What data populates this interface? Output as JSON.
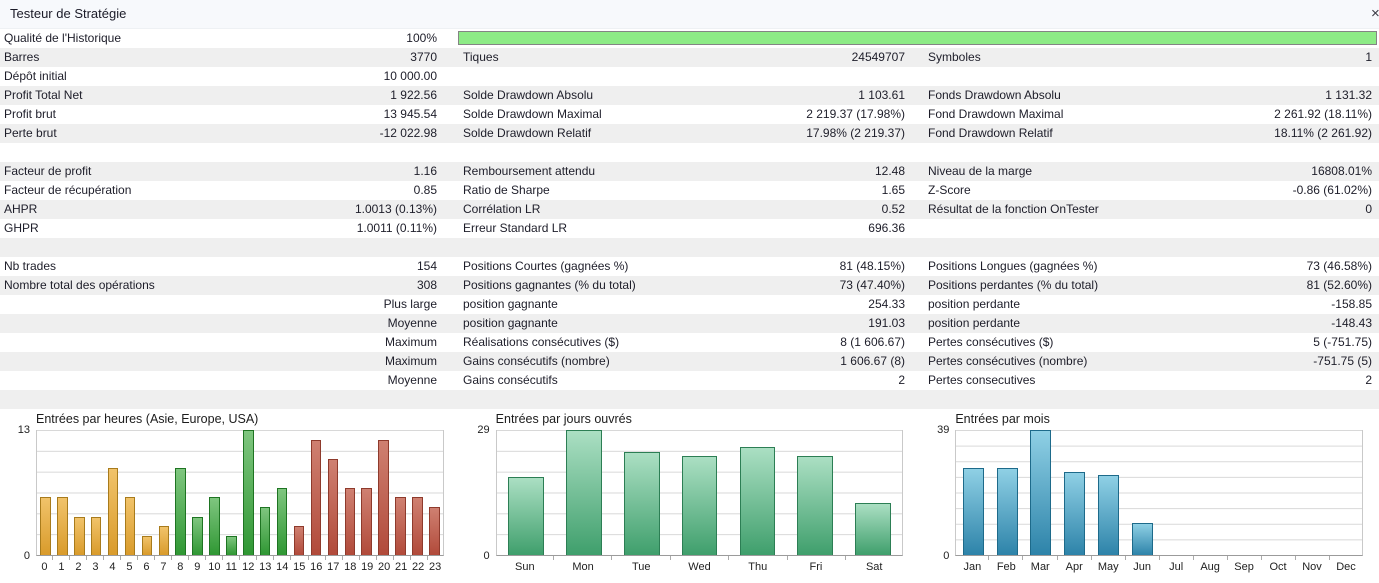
{
  "header": {
    "title": "Testeur de Stratégie",
    "close_glyph": "×"
  },
  "colors": {
    "titlebar_bg": "#f7f9fc",
    "row_alt_bg": "#efefef",
    "progress_fill": "#8deb86",
    "progress_border": "#848484",
    "palettes": {
      "asia": {
        "top": "#f1c36a",
        "bottom": "#d99b2b",
        "border": "#a87b1c"
      },
      "europe": {
        "top": "#7fc67f",
        "bottom": "#2f9733",
        "border": "#1e7422"
      },
      "usa": {
        "top": "#cf8071",
        "bottom": "#b14a3a",
        "border": "#8e3a2c"
      },
      "weekday": {
        "top": "#abdfc3",
        "bottom": "#3f9f6c",
        "border": "#2c7e54"
      },
      "month": {
        "top": "#8fd0e5",
        "bottom": "#2d83a9",
        "border": "#1d6a8a"
      }
    }
  },
  "table": {
    "rows": [
      {
        "c1l": "Qualité de l'Historique",
        "c1v": "100%",
        "progress": true
      },
      {
        "c1l": "Barres",
        "c1v": "3770",
        "c2l": "Tiques",
        "c2v": "24549707",
        "c3l": "Symboles",
        "c3v": "1"
      },
      {
        "c1l": "Dépôt initial",
        "c1v": "10 000.00"
      },
      {
        "c1l": "Profit Total Net",
        "c1v": "1 922.56",
        "c2l": "Solde Drawdown Absolu",
        "c2v": "1 103.61",
        "c3l": "Fonds Drawdown Absolu",
        "c3v": "1 131.32"
      },
      {
        "c1l": "Profit brut",
        "c1v": "13 945.54",
        "c2l": "Solde Drawdown Maximal",
        "c2v": "2 219.37 (17.98%)",
        "c3l": "Fond Drawdown Maximal",
        "c3v": "2 261.92 (18.11%)"
      },
      {
        "c1l": "Perte brut",
        "c1v": "-12 022.98",
        "c2l": "Solde Drawdown Relatif",
        "c2v": "17.98% (2 219.37)",
        "c3l": "Fond Drawdown Relatif",
        "c3v": "18.11% (2 261.92)"
      },
      {},
      {
        "c1l": "Facteur de profit",
        "c1v": "1.16",
        "c2l": "Remboursement attendu",
        "c2v": "12.48",
        "c3l": "Niveau de la marge",
        "c3v": "16808.01%"
      },
      {
        "c1l": "Facteur de récupération",
        "c1v": "0.85",
        "c2l": "Ratio de Sharpe",
        "c2v": "1.65",
        "c3l": "Z-Score",
        "c3v": "-0.86 (61.02%)"
      },
      {
        "c1l": "AHPR",
        "c1v": "1.0013 (0.13%)",
        "c2l": "Corrélation LR",
        "c2v": "0.52",
        "c3l": "Résultat de la fonction OnTester",
        "c3v": "0"
      },
      {
        "c1l": "GHPR",
        "c1v": "1.0011 (0.11%)",
        "c2l": "Erreur Standard LR",
        "c2v": "696.36"
      },
      {},
      {
        "c1l": "Nb trades",
        "c1v": "154",
        "c2l": "Positions Courtes (gagnées %)",
        "c2v": "81 (48.15%)",
        "c3l": "Positions Longues (gagnées %)",
        "c3v": "73 (46.58%)"
      },
      {
        "c1l": "Nombre total des opérations",
        "c1v": "308",
        "c2l": "Positions gagnantes (% du total)",
        "c2v": "73 (47.40%)",
        "c3l": "Positions perdantes (% du total)",
        "c3v": "81 (52.60%)"
      },
      {
        "c1v": "Plus large",
        "c2l": "position gagnante",
        "c2v": "254.33",
        "c3l": "position perdante",
        "c3v": "-158.85"
      },
      {
        "c1v": "Moyenne",
        "c2l": "position gagnante",
        "c2v": "191.03",
        "c3l": "position perdante",
        "c3v": "-148.43"
      },
      {
        "c1v": "Maximum",
        "c2l": "Réalisations consécutives ($)",
        "c2v": "8 (1 606.67)",
        "c3l": "Pertes consécutives ($)",
        "c3v": "5 (-751.75)"
      },
      {
        "c1v": "Maximum",
        "c2l": "Gains consécutifs (nombre)",
        "c2v": "1 606.67 (8)",
        "c3l": "Pertes consécutives (nombre)",
        "c3v": "-751.75 (5)"
      },
      {
        "c1v": "Moyenne",
        "c2l": "Gains consécutifs",
        "c2v": "2",
        "c3l": "Pertes consecutives",
        "c3v": "2"
      },
      {}
    ]
  },
  "chart_data": [
    {
      "id": "entries-by-hour-chart",
      "type": "bar",
      "title": "Entrées par heures (Asie, Europe, USA)",
      "categories": [
        "0",
        "1",
        "2",
        "3",
        "4",
        "5",
        "6",
        "7",
        "8",
        "9",
        "10",
        "11",
        "12",
        "13",
        "14",
        "15",
        "16",
        "17",
        "18",
        "19",
        "20",
        "21",
        "22",
        "23"
      ],
      "values": [
        6,
        6,
        4,
        4,
        9,
        6,
        2,
        3,
        9,
        4,
        6,
        2,
        13,
        5,
        7,
        3,
        12,
        10,
        7,
        7,
        12,
        6,
        6,
        5
      ],
      "ylim": [
        0,
        13
      ],
      "ylabel_top": "13",
      "ylabel_bottom": "0",
      "grid_divisions": 6,
      "bar_colors": [
        "asia",
        "asia",
        "asia",
        "asia",
        "asia",
        "asia",
        "asia",
        "asia",
        "europe",
        "europe",
        "europe",
        "europe",
        "europe",
        "europe",
        "europe",
        "usa",
        "usa",
        "usa",
        "usa",
        "usa",
        "usa",
        "usa",
        "usa",
        "usa"
      ]
    },
    {
      "id": "entries-by-weekday-chart",
      "type": "bar",
      "title": "Entrées par jours ouvrés",
      "categories": [
        "Sun",
        "Mon",
        "Tue",
        "Wed",
        "Thu",
        "Fri",
        "Sat"
      ],
      "values": [
        18,
        29,
        24,
        23,
        25,
        23,
        12
      ],
      "ylim": [
        0,
        29
      ],
      "ylabel_top": "29",
      "ylabel_bottom": "0",
      "grid_divisions": 6,
      "bar_colors": "weekday"
    },
    {
      "id": "entries-by-month-chart",
      "type": "bar",
      "title": "Entrées par mois",
      "categories": [
        "Jan",
        "Feb",
        "Mar",
        "Apr",
        "May",
        "Jun",
        "Jul",
        "Aug",
        "Sep",
        "Oct",
        "Nov",
        "Dec"
      ],
      "values": [
        27,
        27,
        39,
        26,
        25,
        10,
        0,
        0,
        0,
        0,
        0,
        0
      ],
      "ylim": [
        0,
        39
      ],
      "ylabel_top": "39",
      "ylabel_bottom": "0",
      "grid_divisions": 8,
      "bar_colors": "month"
    }
  ]
}
